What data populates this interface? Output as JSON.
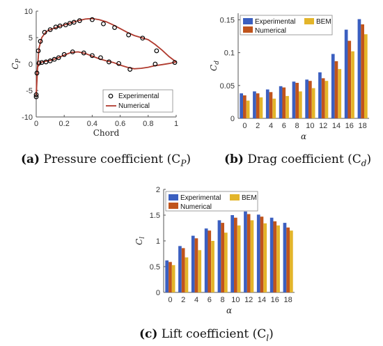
{
  "captions": {
    "a": {
      "tag": "(a)",
      "text": "Pressure coefficient (C",
      "sub": "P",
      "close": ")"
    },
    "b": {
      "tag": "(b)",
      "text": "Drag coefficient (C",
      "sub": "d",
      "close": ")"
    },
    "c": {
      "tag": "(c)",
      "text": "Lift coefficient (C",
      "sub": "l",
      "close": ")"
    }
  },
  "colors": {
    "experimental": "#3b5fc0",
    "numerical": "#c0541c",
    "bem": "#e3b52a",
    "curve": "#b03a2e"
  },
  "chart_data": [
    {
      "id": "cp",
      "type": "scatter",
      "xlabel": "Chord",
      "ylabel": "C",
      "ylabel_sub": "P",
      "xlim": [
        0,
        1
      ],
      "ylim": [
        -10,
        10
      ],
      "xticks": [
        "0",
        "0.2",
        "0.4",
        "0.6",
        "0.8",
        "1"
      ],
      "yticks": [
        "-10",
        "-5",
        "0",
        "5",
        "10"
      ],
      "legend": [
        "Experimental",
        "Numerical"
      ],
      "series": [
        {
          "name": "Experimental",
          "points": [
            [
              0.0,
              -6.2
            ],
            [
              0.0,
              -5.8
            ],
            [
              0.005,
              -1.7
            ],
            [
              0.015,
              2.5
            ],
            [
              0.03,
              4.3
            ],
            [
              0.06,
              6.0
            ],
            [
              0.1,
              6.5
            ],
            [
              0.14,
              7.0
            ],
            [
              0.17,
              7.2
            ],
            [
              0.21,
              7.4
            ],
            [
              0.24,
              7.7
            ],
            [
              0.27,
              7.9
            ],
            [
              0.31,
              8.2
            ],
            [
              0.4,
              8.4
            ],
            [
              0.48,
              7.6
            ],
            [
              0.56,
              6.9
            ],
            [
              0.66,
              5.5
            ],
            [
              0.76,
              4.9
            ],
            [
              0.86,
              2.5
            ],
            [
              0.02,
              0.2
            ],
            [
              0.04,
              0.3
            ],
            [
              0.07,
              0.4
            ],
            [
              0.1,
              0.6
            ],
            [
              0.13,
              0.9
            ],
            [
              0.16,
              1.2
            ],
            [
              0.2,
              1.8
            ],
            [
              0.26,
              2.3
            ],
            [
              0.34,
              2.1
            ],
            [
              0.4,
              1.6
            ],
            [
              0.46,
              1.2
            ],
            [
              0.52,
              0.4
            ],
            [
              0.59,
              0.1
            ],
            [
              0.67,
              -1.0
            ],
            [
              0.85,
              0.0
            ],
            [
              0.99,
              0.3
            ]
          ]
        },
        {
          "name": "Numerical",
          "upper": [
            [
              0.0,
              -6.0
            ],
            [
              0.005,
              -2.0
            ],
            [
              0.02,
              3.0
            ],
            [
              0.04,
              5.0
            ],
            [
              0.07,
              6.1
            ],
            [
              0.1,
              6.5
            ],
            [
              0.15,
              7.0
            ],
            [
              0.2,
              7.4
            ],
            [
              0.25,
              7.8
            ],
            [
              0.3,
              8.2
            ],
            [
              0.35,
              8.5
            ],
            [
              0.4,
              8.6
            ],
            [
              0.45,
              8.4
            ],
            [
              0.5,
              8.0
            ],
            [
              0.55,
              7.4
            ],
            [
              0.6,
              6.7
            ],
            [
              0.65,
              6.0
            ],
            [
              0.7,
              5.4
            ],
            [
              0.75,
              5.0
            ],
            [
              0.8,
              4.6
            ],
            [
              0.85,
              3.7
            ],
            [
              0.9,
              2.6
            ],
            [
              0.95,
              1.4
            ],
            [
              1.0,
              0.4
            ]
          ],
          "lower": [
            [
              0.0,
              -6.0
            ],
            [
              0.01,
              -0.6
            ],
            [
              0.03,
              0.3
            ],
            [
              0.06,
              0.5
            ],
            [
              0.1,
              0.7
            ],
            [
              0.15,
              1.1
            ],
            [
              0.2,
              1.7
            ],
            [
              0.25,
              2.2
            ],
            [
              0.3,
              2.3
            ],
            [
              0.35,
              2.0
            ],
            [
              0.4,
              1.5
            ],
            [
              0.45,
              1.0
            ],
            [
              0.5,
              0.6
            ],
            [
              0.55,
              0.3
            ],
            [
              0.6,
              -0.2
            ],
            [
              0.65,
              -0.6
            ],
            [
              0.7,
              -0.9
            ],
            [
              0.75,
              -0.8
            ],
            [
              0.8,
              -0.6
            ],
            [
              0.85,
              -0.3
            ],
            [
              0.9,
              -0.1
            ],
            [
              0.95,
              0.1
            ],
            [
              1.0,
              0.4
            ]
          ]
        }
      ]
    },
    {
      "id": "cd",
      "type": "bar",
      "xlabel": "α",
      "ylabel": "C",
      "ylabel_sub": "d",
      "ylim": [
        0,
        0.16
      ],
      "yticks": [
        "0",
        "0.05",
        "0.1",
        "0.15"
      ],
      "ytick_values": [
        0,
        0.05,
        0.1,
        0.15
      ],
      "categories": [
        "0",
        "2",
        "4",
        "6",
        "8",
        "10",
        "12",
        "14",
        "16",
        "18"
      ],
      "legend": [
        "Experimental",
        "BEM",
        "Numerical"
      ],
      "series": [
        {
          "name": "Experimental",
          "values": [
            0.038,
            0.041,
            0.044,
            0.049,
            0.056,
            0.059,
            0.07,
            0.098,
            0.135,
            0.151
          ]
        },
        {
          "name": "Numerical",
          "values": [
            0.035,
            0.038,
            0.04,
            0.047,
            0.054,
            0.057,
            0.061,
            0.087,
            0.118,
            0.143
          ]
        },
        {
          "name": "BEM",
          "values": [
            0.027,
            0.032,
            0.03,
            0.034,
            0.041,
            0.046,
            0.057,
            0.075,
            0.102,
            0.128
          ]
        }
      ]
    },
    {
      "id": "cl",
      "type": "bar",
      "xlabel": "α",
      "ylabel": "C",
      "ylabel_sub": "l",
      "ylim": [
        0,
        2
      ],
      "yticks": [
        "0",
        "0.5",
        "1",
        "1.5",
        "2"
      ],
      "ytick_values": [
        0,
        0.5,
        1,
        1.5,
        2
      ],
      "categories": [
        "0",
        "2",
        "4",
        "6",
        "8",
        "10",
        "12",
        "14",
        "16",
        "18"
      ],
      "legend": [
        "Experimental",
        "BEM",
        "Numerical"
      ],
      "series": [
        {
          "name": "Experimental",
          "values": [
            0.62,
            0.9,
            1.1,
            1.24,
            1.4,
            1.5,
            1.57,
            1.51,
            1.45,
            1.35
          ]
        },
        {
          "name": "Numerical",
          "values": [
            0.59,
            0.86,
            1.05,
            1.2,
            1.35,
            1.45,
            1.52,
            1.47,
            1.38,
            1.26
          ]
        },
        {
          "name": "BEM",
          "values": [
            0.53,
            0.68,
            0.82,
            1.0,
            1.16,
            1.3,
            1.4,
            1.34,
            1.3,
            1.2
          ]
        }
      ]
    }
  ]
}
